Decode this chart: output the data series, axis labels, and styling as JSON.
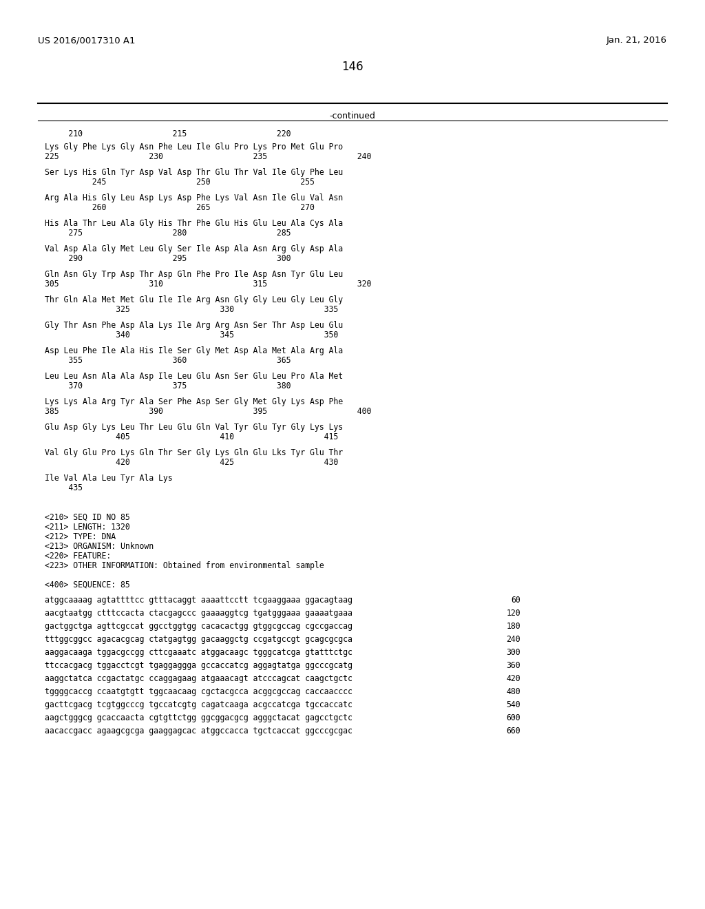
{
  "header_left": "US 2016/0017310 A1",
  "header_right": "Jan. 21, 2016",
  "page_number": "146",
  "continued_label": "-continued",
  "background_color": "#ffffff",
  "text_color": "#000000",
  "sequence_numbers_line": "     210                   215                   220",
  "protein_data": [
    [
      "Lys Gly Phe Lys Gly Asn Phe Leu Ile Glu Pro Lys Pro Met Glu Pro",
      "225                   230                   235                   240"
    ],
    [
      "Ser Lys His Gln Tyr Asp Val Asp Thr Glu Thr Val Ile Gly Phe Leu",
      "          245                   250                   255"
    ],
    [
      "Arg Ala His Gly Leu Asp Lys Asp Phe Lys Val Asn Ile Glu Val Asn",
      "          260                   265                   270"
    ],
    [
      "His Ala Thr Leu Ala Gly His Thr Phe Glu His Glu Leu Ala Cys Ala",
      "     275                   280                   285"
    ],
    [
      "Val Asp Ala Gly Met Leu Gly Ser Ile Asp Ala Asn Arg Gly Asp Ala",
      "     290                   295                   300"
    ],
    [
      "Gln Asn Gly Trp Asp Thr Asp Gln Phe Pro Ile Asp Asn Tyr Glu Leu",
      "305                   310                   315                   320"
    ],
    [
      "Thr Gln Ala Met Met Glu Ile Ile Arg Asn Gly Gly Leu Gly Leu Gly",
      "               325                   330                   335"
    ],
    [
      "Gly Thr Asn Phe Asp Ala Lys Ile Arg Arg Asn Ser Thr Asp Leu Glu",
      "               340                   345                   350"
    ],
    [
      "Asp Leu Phe Ile Ala His Ile Ser Gly Met Asp Ala Met Ala Arg Ala",
      "     355                   360                   365"
    ],
    [
      "Leu Leu Asn Ala Ala Asp Ile Leu Glu Asn Ser Glu Leu Pro Ala Met",
      "     370                   375                   380"
    ],
    [
      "Lys Lys Ala Arg Tyr Ala Ser Phe Asp Ser Gly Met Gly Lys Asp Phe",
      "385                   390                   395                   400"
    ],
    [
      "Glu Asp Gly Lys Leu Thr Leu Glu Gln Val Tyr Glu Tyr Gly Lys Lys",
      "               405                   410                   415"
    ],
    [
      "Val Gly Glu Pro Lys Gln Thr Ser Gly Lys Gln Glu Lks Tyr Glu Thr",
      "               420                   425                   430"
    ],
    [
      "Ile Val Ala Leu Tyr Ala Lys",
      "     435"
    ]
  ],
  "metadata_lines": [
    "<210> SEQ ID NO 85",
    "<211> LENGTH: 1320",
    "<212> TYPE: DNA",
    "<213> ORGANISM: Unknown",
    "<220> FEATURE:",
    "<223> OTHER INFORMATION: Obtained from environmental sample"
  ],
  "sequence_label": "<400> SEQUENCE: 85",
  "dna_lines": [
    [
      "atggcaaaag agtattttcc gtttacaggt aaaattcctt tcgaaggaaa ggacagtaag",
      "60"
    ],
    [
      "aacgtaatgg ctttccacta ctacgagccc gaaaaggtcg tgatgggaaa gaaaatgaaa",
      "120"
    ],
    [
      "gactggctga agttcgccat ggcctggtgg cacacactgg gtggcgccag cgccgaccag",
      "180"
    ],
    [
      "tttggcggcc agacacgcag ctatgagtgg gacaaggctg ccgatgccgt gcagcgcgca",
      "240"
    ],
    [
      "aaggacaaga tggacgccgg cttcgaaatc atggacaagc tgggcatcga gtatttctgc",
      "300"
    ],
    [
      "ttccacgacg tggacctcgt tgaggaggga gccaccatcg aggagtatga ggcccgcatg",
      "360"
    ],
    [
      "aaggctatca ccgactatgc ccaggagaag atgaaacagt atcccagcat caagctgctc",
      "420"
    ],
    [
      "tggggcaccg ccaatgtgtt tggcaacaag cgctacgcca acggcgccag caccaacccc",
      "480"
    ],
    [
      "gacttcgacg tcgtggcccg tgccatcgtg cagatcaaga acgccatcga tgccaccatc",
      "540"
    ],
    [
      "aagctgggcg gcaccaacta cgtgttctgg ggcggacgcg agggctacat gagcctgctc",
      "600"
    ],
    [
      "aacaccgacc agaagcgcga gaaggagcac atggccacca tgctcaccat ggcccgcgac",
      "660"
    ]
  ]
}
